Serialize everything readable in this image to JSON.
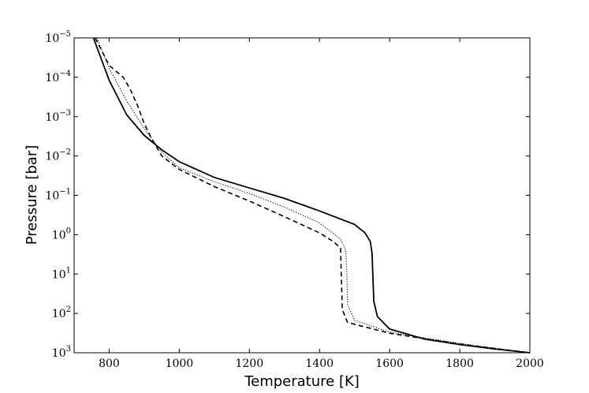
{
  "chart_data": {
    "type": "line",
    "xlabel": "Temperature [K]",
    "ylabel": "Pressure [bar]",
    "xlim": [
      700,
      2000
    ],
    "ylim": [
      1e-05,
      1000
    ],
    "y_scale": "log",
    "y_inverted": true,
    "grid": false,
    "x_ticks": [
      "800",
      "1000",
      "1200",
      "1400",
      "1600",
      "1800",
      "2000"
    ],
    "y_ticks": [
      {
        "base": "10",
        "exp": "−5"
      },
      {
        "base": "10",
        "exp": "−4"
      },
      {
        "base": "10",
        "exp": "−3"
      },
      {
        "base": "10",
        "exp": "−2"
      },
      {
        "base": "10",
        "exp": "−1"
      },
      {
        "base": "10",
        "exp": "0"
      },
      {
        "base": "10",
        "exp": "1"
      },
      {
        "base": "10",
        "exp": "2"
      },
      {
        "base": "10",
        "exp": "3"
      }
    ],
    "series": [
      {
        "style": "solid",
        "color": "#000000",
        "points": [
          [
            755,
            1e-05
          ],
          [
            800,
            0.00012
          ],
          [
            850,
            0.0009
          ],
          [
            900,
            0.003
          ],
          [
            950,
            0.007
          ],
          [
            1000,
            0.014
          ],
          [
            1100,
            0.035
          ],
          [
            1200,
            0.065
          ],
          [
            1300,
            0.12
          ],
          [
            1400,
            0.25
          ],
          [
            1500,
            0.55
          ],
          [
            1530,
            0.9
          ],
          [
            1545,
            1.5
          ],
          [
            1550,
            3
          ],
          [
            1552,
            10
          ],
          [
            1555,
            50
          ],
          [
            1565,
            120
          ],
          [
            1600,
            250
          ],
          [
            1700,
            450
          ],
          [
            1800,
            620
          ],
          [
            1900,
            800
          ],
          [
            2000,
            1000
          ]
        ]
      },
      {
        "style": "dashed",
        "color": "#000000",
        "points": [
          [
            760,
            1e-05
          ],
          [
            800,
            5e-05
          ],
          [
            840,
            0.0001
          ],
          [
            860,
            0.0002
          ],
          [
            880,
            0.0005
          ],
          [
            900,
            0.0015
          ],
          [
            920,
            0.0035
          ],
          [
            950,
            0.01
          ],
          [
            1000,
            0.022
          ],
          [
            1100,
            0.06
          ],
          [
            1200,
            0.14
          ],
          [
            1300,
            0.35
          ],
          [
            1400,
            0.9
          ],
          [
            1440,
            1.5
          ],
          [
            1460,
            2.2
          ],
          [
            1462,
            10
          ],
          [
            1465,
            80
          ],
          [
            1480,
            170
          ],
          [
            1600,
            320
          ],
          [
            1700,
            440
          ],
          [
            1800,
            600
          ],
          [
            1900,
            780
          ],
          [
            2000,
            1000
          ]
        ]
      },
      {
        "style": "dotted",
        "color": "#000000",
        "points": [
          [
            765,
            1e-05
          ],
          [
            800,
            6e-05
          ],
          [
            850,
            0.0004
          ],
          [
            900,
            0.002
          ],
          [
            950,
            0.008
          ],
          [
            1000,
            0.02
          ],
          [
            1100,
            0.045
          ],
          [
            1200,
            0.09
          ],
          [
            1300,
            0.2
          ],
          [
            1400,
            0.5
          ],
          [
            1460,
            1.3
          ],
          [
            1475,
            2.5
          ],
          [
            1478,
            10
          ],
          [
            1480,
            60
          ],
          [
            1500,
            150
          ],
          [
            1600,
            300
          ],
          [
            1700,
            420
          ],
          [
            1800,
            580
          ],
          [
            1900,
            770
          ],
          [
            2000,
            1000
          ]
        ]
      }
    ]
  }
}
